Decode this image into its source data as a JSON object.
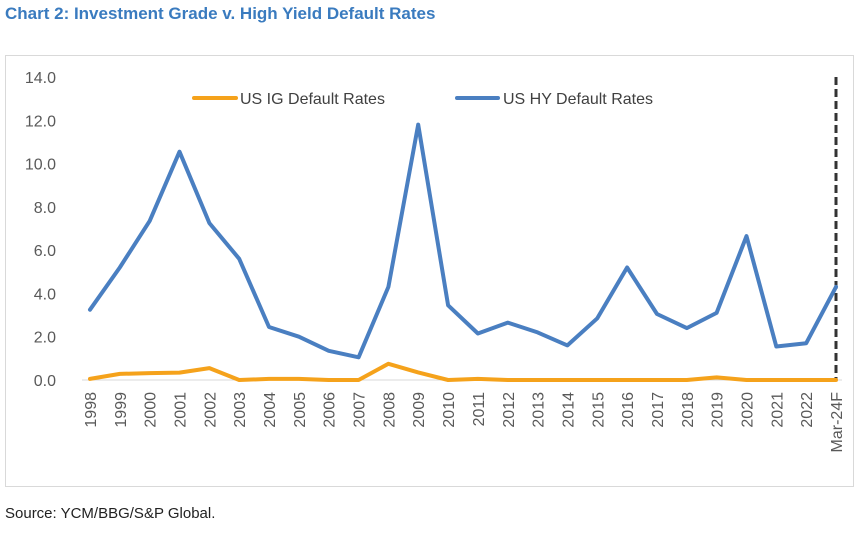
{
  "title": "Chart 2: Investment Grade v. High Yield Default Rates",
  "source": "Source: YCM/BBG/S&P Global.",
  "colors": {
    "ig": "#f5a21b",
    "hy": "#4a7fc1",
    "title": "#3a7bbf",
    "forecast_marker": "#333333"
  },
  "chart_data": {
    "type": "line",
    "title": "",
    "xlabel": "",
    "ylabel": "",
    "ylim": [
      0,
      14
    ],
    "yticks": [
      "0.0",
      "2.0",
      "4.0",
      "6.0",
      "8.0",
      "10.0",
      "12.0",
      "14.0"
    ],
    "grid": false,
    "legend_position": "top",
    "categories": [
      "1998",
      "1999",
      "2000",
      "2001",
      "2002",
      "2003",
      "2004",
      "2005",
      "2006",
      "2007",
      "2008",
      "2009",
      "2010",
      "2011",
      "2012",
      "2013",
      "2014",
      "2015",
      "2016",
      "2017",
      "2018",
      "2019",
      "2020",
      "2021",
      "2022",
      "Mar-24F"
    ],
    "series": [
      {
        "name": "US IG Default Rates",
        "values": [
          0.05,
          0.28,
          0.32,
          0.34,
          0.55,
          0.0,
          0.05,
          0.05,
          0.0,
          0.0,
          0.75,
          0.35,
          0.0,
          0.05,
          0.0,
          0.0,
          0.0,
          0.0,
          0.0,
          0.0,
          0.0,
          0.12,
          0.0,
          0.0,
          0.0,
          0.0
        ]
      },
      {
        "name": "US HY Default Rates",
        "values": [
          3.25,
          5.2,
          7.35,
          10.55,
          7.25,
          5.6,
          2.45,
          2.0,
          1.35,
          1.05,
          4.3,
          11.8,
          3.45,
          2.15,
          2.65,
          2.2,
          1.6,
          2.85,
          5.2,
          3.05,
          2.4,
          3.1,
          6.65,
          1.55,
          1.7,
          4.3
        ]
      }
    ],
    "annotations": [
      {
        "type": "vertical-dashed-line",
        "at": "Mar-24F"
      }
    ]
  }
}
